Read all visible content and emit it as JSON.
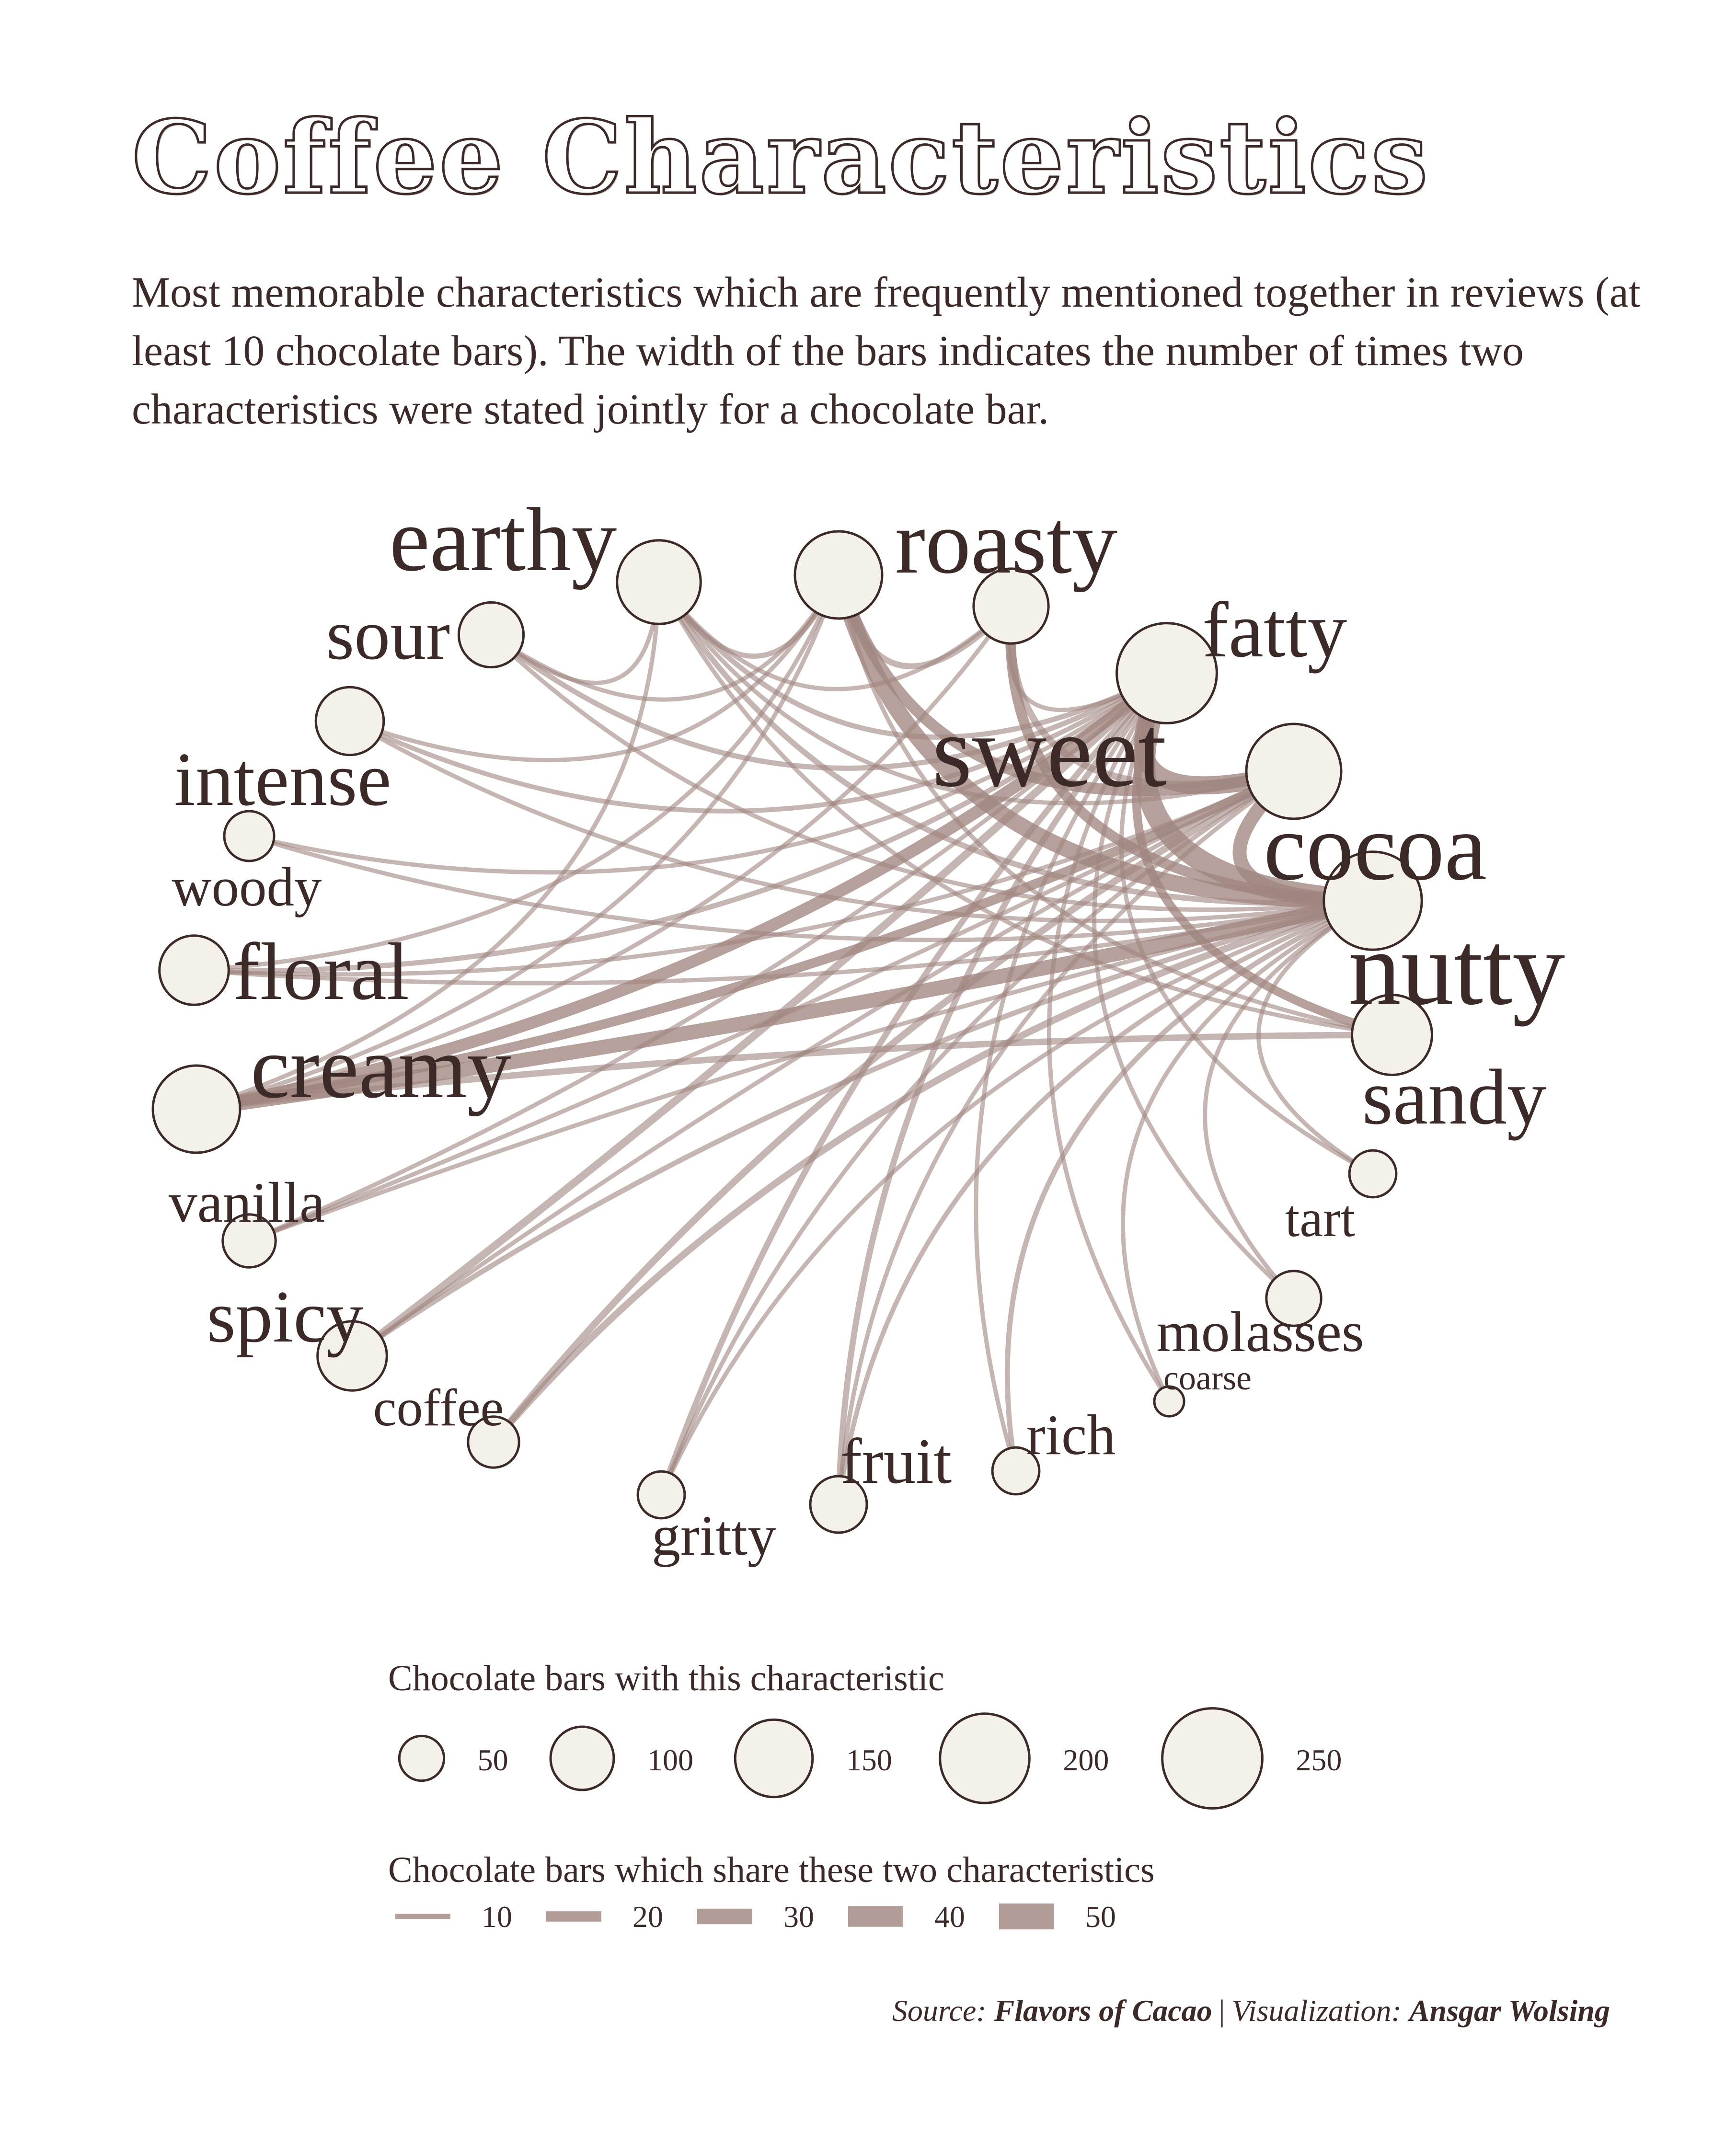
{
  "title": "Coffee Characteristics",
  "subtitle": "Most memorable characteristics which are frequently mentioned together in reviews (at least 10 chocolate bars). The width of the bars indicates the number of times two characteristics were stated jointly for a chocolate bar.",
  "colors": {
    "text": "#3b2a28",
    "node_fill": "#f4f1ea",
    "node_stroke": "#3b2a28",
    "edge": "#a08580"
  },
  "nodes": [
    {
      "id": "earthy",
      "label": "earthy",
      "count": 175
    },
    {
      "id": "roasty",
      "label": "roasty",
      "count": 190
    },
    {
      "id": "fatty",
      "label": "fatty",
      "count": 140
    },
    {
      "id": "sweet",
      "label": "sweet",
      "count": 250
    },
    {
      "id": "cocoa",
      "label": "cocoa",
      "count": 225
    },
    {
      "id": "nutty",
      "label": "nutty",
      "count": 240
    },
    {
      "id": "sandy",
      "label": "sandy",
      "count": 160
    },
    {
      "id": "tart",
      "label": "tart",
      "count": 55
    },
    {
      "id": "molasses",
      "label": "molasses",
      "count": 75
    },
    {
      "id": "coarse",
      "label": "coarse",
      "count": 22
    },
    {
      "id": "rich",
      "label": "rich",
      "count": 55
    },
    {
      "id": "fruit",
      "label": "fruit",
      "count": 80
    },
    {
      "id": "gritty",
      "label": "gritty",
      "count": 55
    },
    {
      "id": "coffee",
      "label": "coffee",
      "count": 65
    },
    {
      "id": "spicy",
      "label": "spicy",
      "count": 120
    },
    {
      "id": "vanilla",
      "label": "vanilla",
      "count": 70
    },
    {
      "id": "creamy",
      "label": "creamy",
      "count": 190
    },
    {
      "id": "floral",
      "label": "floral",
      "count": 120
    },
    {
      "id": "woody",
      "label": "woody",
      "count": 62
    },
    {
      "id": "intense",
      "label": "intense",
      "count": 115
    },
    {
      "id": "sour",
      "label": "sour",
      "count": 105
    }
  ],
  "edges": [
    {
      "source": "sweet",
      "target": "nutty",
      "value": 50
    },
    {
      "source": "sweet",
      "target": "cocoa",
      "value": 42
    },
    {
      "source": "roasty",
      "target": "nutty",
      "value": 38
    },
    {
      "source": "creamy",
      "target": "nutty",
      "value": 34
    },
    {
      "source": "cocoa",
      "target": "nutty",
      "value": 32
    },
    {
      "source": "creamy",
      "target": "sweet",
      "value": 28
    },
    {
      "source": "roasty",
      "target": "cocoa",
      "value": 26
    },
    {
      "source": "fatty",
      "target": "nutty",
      "value": 24
    },
    {
      "source": "creamy",
      "target": "cocoa",
      "value": 22
    },
    {
      "source": "sweet",
      "target": "sandy",
      "value": 20
    },
    {
      "source": "spicy",
      "target": "sweet",
      "value": 18
    },
    {
      "source": "coffee",
      "target": "nutty",
      "value": 16
    },
    {
      "source": "coffee",
      "target": "cocoa",
      "value": 16
    },
    {
      "source": "fatty",
      "target": "cocoa",
      "value": 16
    },
    {
      "source": "creamy",
      "target": "sandy",
      "value": 15
    },
    {
      "source": "fruit",
      "target": "sweet",
      "value": 14
    },
    {
      "source": "gritty",
      "target": "sweet",
      "value": 14
    },
    {
      "source": "earthy",
      "target": "nutty",
      "value": 13
    },
    {
      "source": "roasty",
      "target": "fatty",
      "value": 14
    },
    {
      "source": "earthy",
      "target": "sweet",
      "value": 12
    },
    {
      "source": "floral",
      "target": "sweet",
      "value": 12
    },
    {
      "source": "sour",
      "target": "sweet",
      "value": 12
    },
    {
      "source": "spicy",
      "target": "nutty",
      "value": 12
    },
    {
      "source": "earthy",
      "target": "roasty",
      "value": 12
    },
    {
      "source": "rich",
      "target": "nutty",
      "value": 12
    },
    {
      "source": "fruit",
      "target": "nutty",
      "value": 11
    },
    {
      "source": "intense",
      "target": "sweet",
      "value": 11
    },
    {
      "source": "vanilla",
      "target": "cocoa",
      "value": 10
    },
    {
      "source": "molasses",
      "target": "sweet",
      "value": 10
    },
    {
      "source": "tart",
      "target": "sweet",
      "value": 10
    },
    {
      "source": "earthy",
      "target": "sandy",
      "value": 10
    },
    {
      "source": "earthy",
      "target": "cocoa",
      "value": 10
    },
    {
      "source": "woody",
      "target": "nutty",
      "value": 10
    },
    {
      "source": "intense",
      "target": "nutty",
      "value": 10
    },
    {
      "source": "sour",
      "target": "nutty",
      "value": 10
    },
    {
      "source": "creamy",
      "target": "fatty",
      "value": 10
    },
    {
      "source": "floral",
      "target": "nutty",
      "value": 10
    },
    {
      "source": "floral",
      "target": "cocoa",
      "value": 10
    },
    {
      "source": "coarse",
      "target": "sweet",
      "value": 10
    },
    {
      "source": "rich",
      "target": "sweet",
      "value": 10
    },
    {
      "source": "gritty",
      "target": "nutty",
      "value": 10
    },
    {
      "source": "roasty",
      "target": "sandy",
      "value": 10
    },
    {
      "source": "spicy",
      "target": "cocoa",
      "value": 10
    },
    {
      "source": "creamy",
      "target": "roasty",
      "value": 10
    },
    {
      "source": "earthy",
      "target": "fatty",
      "value": 10
    },
    {
      "source": "sour",
      "target": "roasty",
      "value": 10
    },
    {
      "source": "vanilla",
      "target": "nutty",
      "value": 10
    },
    {
      "source": "woody",
      "target": "sweet",
      "value": 10
    },
    {
      "source": "intense",
      "target": "roasty",
      "value": 10
    },
    {
      "source": "floral",
      "target": "roasty",
      "value": 10
    },
    {
      "source": "creamy",
      "target": "earthy",
      "value": 10
    },
    {
      "source": "vanilla",
      "target": "sweet",
      "value": 10
    },
    {
      "source": "fruit",
      "target": "cocoa",
      "value": 10
    },
    {
      "source": "molasses",
      "target": "nutty",
      "value": 10
    },
    {
      "source": "tart",
      "target": "nutty",
      "value": 10
    },
    {
      "source": "coarse",
      "target": "nutty",
      "value": 10
    },
    {
      "source": "gritty",
      "target": "cocoa",
      "value": 10
    },
    {
      "source": "sour",
      "target": "earthy",
      "value": 10
    },
    {
      "source": "sweet",
      "target": "fatty",
      "value": 10
    }
  ],
  "legend": {
    "size_title": "Chocolate bars with this characteristic",
    "size_values": [
      50,
      100,
      150,
      200,
      250
    ],
    "size_labels": [
      "50",
      "100",
      "150",
      "200",
      "250"
    ],
    "width_title": "Chocolate bars which share these two characteristics",
    "width_values": [
      10,
      20,
      30,
      40,
      50
    ],
    "width_labels": [
      "10",
      "20",
      "30",
      "40",
      "50"
    ]
  },
  "source": {
    "source_prefix": "Source",
    "source_name": "Flavors of Cacao",
    "viz_prefix": "Visualization",
    "viz_name": "Ansgar Wolsing"
  }
}
